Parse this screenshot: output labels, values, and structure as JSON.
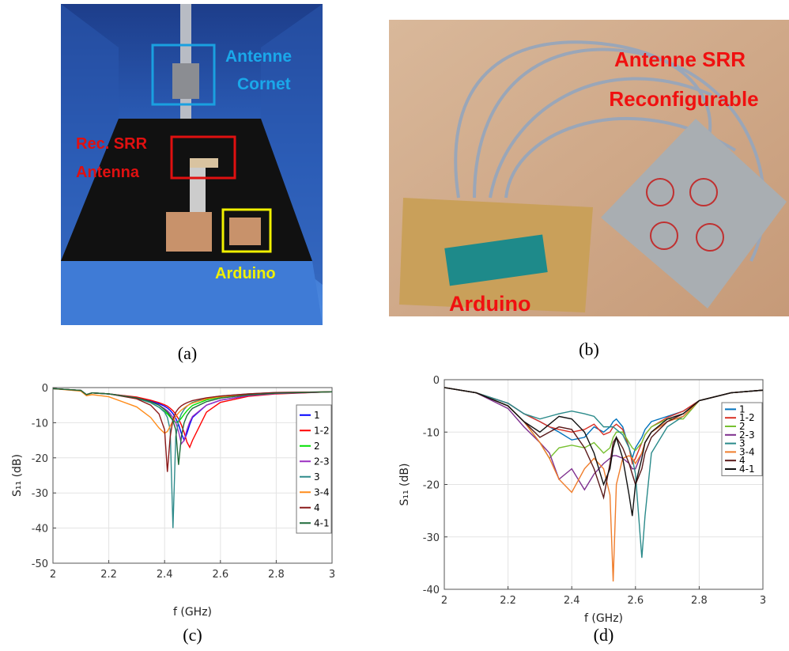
{
  "photos": [
    {
      "caption": "(a)",
      "labels": [
        {
          "lines": [
            "Antenne",
            "Cornet"
          ]
        },
        {
          "lines": [
            "Rec. SRR",
            "Antenna"
          ]
        },
        {
          "lines": [
            "Arduino"
          ]
        }
      ]
    },
    {
      "caption": "(b)",
      "labels": [
        {
          "lines": [
            "Antenne SRR",
            "Reconfigurable"
          ]
        },
        {
          "lines": [
            "Arduino"
          ]
        }
      ]
    }
  ],
  "chart_data": [
    {
      "type": "line",
      "caption": "(c)",
      "x_label": "f (GHz)",
      "y_label": "S₁₁ (dB)",
      "xlim": [
        2,
        3
      ],
      "ylim": [
        -50,
        0
      ],
      "xticks": [
        2,
        2.2,
        2.4,
        2.6,
        2.8,
        3
      ],
      "yticks": [
        0,
        -10,
        -20,
        -30,
        -40,
        -50
      ],
      "grid": true,
      "legend": "upper right",
      "x": [
        2,
        2.1,
        2.12,
        2.14,
        2.2,
        2.3,
        2.35,
        2.38,
        2.4,
        2.41,
        2.42,
        2.43,
        2.44,
        2.45,
        2.46,
        2.47,
        2.48,
        2.49,
        2.5,
        2.55,
        2.6,
        2.7,
        2.8,
        3
      ],
      "series": [
        {
          "name": "1",
          "color": "#0000ff",
          "values": [
            -0.3,
            -0.8,
            -2,
            -1.5,
            -1.8,
            -2.8,
            -3.8,
            -4.6,
            -5.3,
            -5.8,
            -6.5,
            -7.4,
            -8.8,
            -10.5,
            -13,
            -15,
            -13,
            -10.5,
            -8.5,
            -5,
            -3.6,
            -2.3,
            -1.7,
            -1.2
          ]
        },
        {
          "name": "1-2",
          "color": "#ff0000",
          "values": [
            -0.3,
            -0.8,
            -2,
            -1.5,
            -1.8,
            -2.7,
            -3.6,
            -4.3,
            -4.9,
            -5.3,
            -5.9,
            -6.6,
            -7.6,
            -8.9,
            -10.6,
            -12.8,
            -15.5,
            -17,
            -15,
            -7,
            -4.2,
            -2.5,
            -1.8,
            -1.2
          ]
        },
        {
          "name": "2",
          "color": "#00e000",
          "values": [
            -0.3,
            -0.8,
            -2,
            -1.5,
            -1.8,
            -3,
            -4.3,
            -5.6,
            -6.8,
            -7.5,
            -8.4,
            -9.3,
            -10,
            -9.6,
            -8.7,
            -7.6,
            -6.6,
            -5.8,
            -5.1,
            -3.5,
            -2.7,
            -1.9,
            -1.5,
            -1.2
          ]
        },
        {
          "name": "2-3",
          "color": "#9b30c0",
          "values": [
            -0.3,
            -0.8,
            -2,
            -1.5,
            -1.8,
            -2.9,
            -4,
            -5,
            -6,
            -6.6,
            -7.4,
            -8.5,
            -10,
            -12.5,
            -16,
            -15,
            -12,
            -9.8,
            -8.2,
            -5,
            -3.6,
            -2.3,
            -1.7,
            -1.2
          ]
        },
        {
          "name": "3",
          "color": "#2e8b8b",
          "values": [
            -0.3,
            -0.8,
            -2,
            -1.5,
            -1.8,
            -3,
            -4.3,
            -5.6,
            -7,
            -8.5,
            -12,
            -40,
            -14,
            -9.5,
            -7.5,
            -6.2,
            -5.3,
            -4.7,
            -4.2,
            -3,
            -2.4,
            -1.8,
            -1.4,
            -1.2
          ]
        },
        {
          "name": "3-4",
          "color": "#ff8c1a",
          "values": [
            -0.3,
            -1,
            -2.3,
            -2,
            -2.6,
            -5.5,
            -8.5,
            -11.5,
            -13,
            -12.5,
            -11,
            -9.5,
            -8.2,
            -7.2,
            -6.4,
            -5.8,
            -5.2,
            -4.8,
            -4.4,
            -3.2,
            -2.6,
            -1.9,
            -1.5,
            -1.2
          ]
        },
        {
          "name": "4",
          "color": "#8b1a1a",
          "values": [
            -0.3,
            -0.8,
            -2,
            -1.5,
            -1.8,
            -3.2,
            -5,
            -7.5,
            -12,
            -24,
            -14,
            -9,
            -7,
            -5.9,
            -5.2,
            -4.7,
            -4.3,
            -4,
            -3.7,
            -2.9,
            -2.4,
            -1.8,
            -1.4,
            -1.2
          ]
        },
        {
          "name": "4-1",
          "color": "#1f6b3a",
          "values": [
            -0.3,
            -0.8,
            -2,
            -1.5,
            -1.8,
            -2.9,
            -4,
            -5,
            -6.3,
            -7,
            -8,
            -9.5,
            -12,
            -22,
            -14,
            -10,
            -8,
            -6.8,
            -5.9,
            -4,
            -3,
            -2.1,
            -1.6,
            -1.2
          ]
        }
      ]
    },
    {
      "type": "line",
      "caption": "(d)",
      "x_label": "f (GHz)",
      "y_label": "S₁₁ (dB)",
      "xlim": [
        2,
        3
      ],
      "ylim": [
        -40,
        0
      ],
      "xticks": [
        2,
        2.2,
        2.4,
        2.6,
        2.8,
        3
      ],
      "yticks": [
        0,
        -10,
        -20,
        -30,
        -40
      ],
      "grid": true,
      "legend": "upper right",
      "x": [
        2,
        2.1,
        2.2,
        2.25,
        2.3,
        2.33,
        2.36,
        2.4,
        2.44,
        2.47,
        2.5,
        2.52,
        2.53,
        2.54,
        2.56,
        2.58,
        2.59,
        2.6,
        2.62,
        2.63,
        2.65,
        2.7,
        2.75,
        2.8,
        2.9,
        3
      ],
      "series": [
        {
          "name": "1",
          "color": "#0072bd",
          "values": [
            -1.5,
            -2.5,
            -4.5,
            -6.5,
            -8,
            -9,
            -10,
            -11.5,
            -11,
            -9,
            -10,
            -9,
            -8,
            -7.5,
            -9,
            -13,
            -15,
            -13,
            -11,
            -9.5,
            -8,
            -7,
            -6,
            -4,
            -2.5,
            -2
          ]
        },
        {
          "name": "1-2",
          "color": "#d93025",
          "values": [
            -1.5,
            -2.5,
            -4.5,
            -6.5,
            -8,
            -9,
            -9.5,
            -10,
            -9.5,
            -8.5,
            -10.5,
            -10,
            -9,
            -8.5,
            -9.5,
            -13,
            -16,
            -15,
            -12,
            -10.5,
            -9,
            -7.2,
            -6,
            -4,
            -2.5,
            -2
          ]
        },
        {
          "name": "2",
          "color": "#77c030",
          "values": [
            -1.5,
            -2.5,
            -5,
            -8,
            -12,
            -15,
            -13,
            -12.5,
            -13,
            -12,
            -14,
            -13,
            -11,
            -10,
            -10,
            -12,
            -13,
            -13.5,
            -12,
            -10.5,
            -9,
            -7.5,
            -7.5,
            -4,
            -2.5,
            -2
          ]
        },
        {
          "name": "2-3",
          "color": "#7e2f8e",
          "values": [
            -1.5,
            -2.5,
            -5.5,
            -9,
            -12,
            -14,
            -19,
            -17,
            -21,
            -18,
            -16,
            -15,
            -14.5,
            -14.5,
            -15,
            -16,
            -17,
            -17,
            -14,
            -12,
            -10,
            -8,
            -7,
            -4,
            -2.5,
            -2
          ]
        },
        {
          "name": "3",
          "color": "#2a8a8a",
          "values": [
            -1.5,
            -2.5,
            -4.5,
            -6.5,
            -7.5,
            -7,
            -6.5,
            -6,
            -6.5,
            -7,
            -9,
            -9,
            -9,
            -9.5,
            -10.5,
            -13,
            -15,
            -18,
            -34,
            -26,
            -14,
            -9,
            -7,
            -4,
            -2.5,
            -2
          ]
        },
        {
          "name": "3-4",
          "color": "#f07d2b",
          "values": [
            -1.5,
            -2.5,
            -5,
            -8,
            -12,
            -15,
            -19,
            -21.5,
            -17,
            -15,
            -17,
            -22,
            -38.5,
            -20,
            -15,
            -14.5,
            -15,
            -16,
            -14,
            -12,
            -10,
            -8,
            -7,
            -4,
            -2.5,
            -2
          ]
        },
        {
          "name": "4",
          "color": "#5a1a1a",
          "values": [
            -1.5,
            -2.5,
            -5,
            -8,
            -11,
            -10,
            -9,
            -9.5,
            -13,
            -17,
            -22.5,
            -16,
            -12,
            -11,
            -13,
            -16,
            -18,
            -20,
            -17,
            -14,
            -11,
            -8,
            -6.5,
            -4,
            -2.5,
            -2
          ]
        },
        {
          "name": "4-1",
          "color": "#111111",
          "values": [
            -1.5,
            -2.5,
            -5,
            -8,
            -10,
            -8.5,
            -7,
            -7.5,
            -10,
            -14,
            -20,
            -17,
            -13,
            -11,
            -15,
            -22,
            -26,
            -20,
            -15,
            -12,
            -10,
            -7.5,
            -6.5,
            -4,
            -2.5,
            -2
          ]
        }
      ]
    }
  ]
}
